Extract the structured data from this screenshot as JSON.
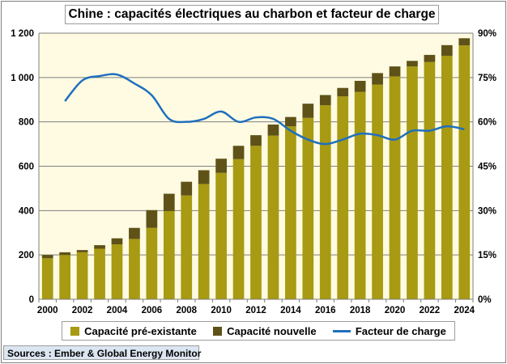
{
  "chart_data": {
    "type": "bar",
    "title": "Chine : capacités électriques au charbon et facteur de charge",
    "stacked": true,
    "years": [
      "2000",
      "2001",
      "2002",
      "2003",
      "2004",
      "2005",
      "2006",
      "2007",
      "2008",
      "2009",
      "2010",
      "2011",
      "2012",
      "2013",
      "2014",
      "2015",
      "2016",
      "2017",
      "2018",
      "2019",
      "2020",
      "2021",
      "2022",
      "2023",
      "2024"
    ],
    "x_tick_labels": [
      "2000",
      "2002",
      "2004",
      "2006",
      "2008",
      "2010",
      "2012",
      "2014",
      "2016",
      "2018",
      "2020",
      "2022",
      "2024"
    ],
    "y_left": {
      "lim": [
        0,
        1200
      ],
      "ticks": [
        0,
        200,
        400,
        600,
        800,
        1000,
        1200
      ],
      "tick_labels": [
        "0",
        "200",
        "400",
        "600",
        "800",
        "1 000",
        "1 200"
      ]
    },
    "y_right": {
      "lim": [
        0,
        90
      ],
      "ticks": [
        0,
        15,
        30,
        45,
        60,
        75,
        90
      ],
      "tick_labels": [
        "0%",
        "15%",
        "30%",
        "45%",
        "60%",
        "75%",
        "90%"
      ]
    },
    "series": [
      {
        "name": "Capacité pré-existante",
        "kind": "bar",
        "color": "#a89a12",
        "values": [
          185,
          200,
          212,
          228,
          248,
          272,
          322,
          398,
          468,
          520,
          570,
          632,
          692,
          738,
          780,
          818,
          875,
          915,
          935,
          968,
          1005,
          1050,
          1070,
          1098,
          1145
        ]
      },
      {
        "name": "Capacité nouvelle",
        "kind": "bar",
        "color": "#5e5218",
        "values": [
          15,
          12,
          10,
          16,
          27,
          50,
          80,
          78,
          62,
          62,
          64,
          60,
          48,
          50,
          42,
          64,
          46,
          38,
          50,
          52,
          45,
          25,
          32,
          48,
          32
        ]
      },
      {
        "name": "Facteur de charge",
        "kind": "line",
        "axis": "right",
        "color": "#1f6fbe",
        "values": [
          63,
          67,
          74,
          75.5,
          76,
          73,
          69,
          61,
          60,
          61,
          63.5,
          60,
          61.5,
          61,
          57,
          54,
          52.5,
          54,
          56,
          55.5,
          54,
          57,
          57,
          58.5,
          57.5
        ]
      }
    ]
  },
  "legend": {
    "items": [
      {
        "label": "Capacité pré-existante",
        "color": "#a89a12"
      },
      {
        "label": "Capacité nouvelle",
        "color": "#5e5218"
      },
      {
        "label": "Facteur de charge",
        "color": "#1f6fbe"
      }
    ]
  },
  "source": "Sources : Ember & Global Energy Monitor",
  "colors": {
    "plot_bg": "#fefbe2",
    "grid": "#7f7f7f"
  }
}
